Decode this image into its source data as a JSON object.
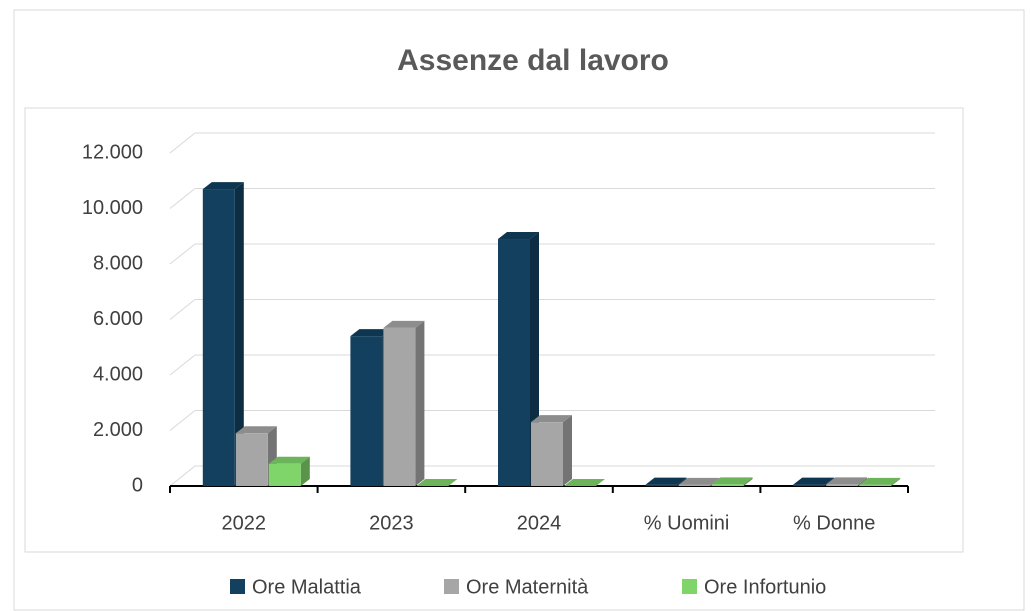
{
  "chart_data": {
    "type": "bar3d",
    "title": "Assenze dal lavoro",
    "categories": [
      "2022",
      "2023",
      "2024",
      "% Uomini",
      "% Donne"
    ],
    "series": [
      {
        "name": "Ore Malattia",
        "color": "#12405e",
        "values": [
          10700,
          5400,
          8900,
          50,
          50
        ]
      },
      {
        "name": "Ore Maternità",
        "color": "#a6a6a6",
        "values": [
          1900,
          5700,
          2300,
          40,
          60
        ]
      },
      {
        "name": "Ore Infortunio",
        "color": "#7fd46a",
        "values": [
          800,
          0,
          0,
          60,
          40
        ]
      }
    ],
    "ylim": [
      0,
      12000
    ],
    "yticks": [
      0,
      {
        "value": 2000,
        "label": "2.000"
      },
      {
        "value": 4000,
        "label": "4.000"
      },
      {
        "value": 6000,
        "label": "6.000"
      },
      {
        "value": 8000,
        "label": "8.000"
      },
      {
        "value": 10000,
        "label": "10.000"
      },
      {
        "value": 12000,
        "label": "12.000"
      }
    ],
    "grid": true,
    "legend": "bottom"
  }
}
